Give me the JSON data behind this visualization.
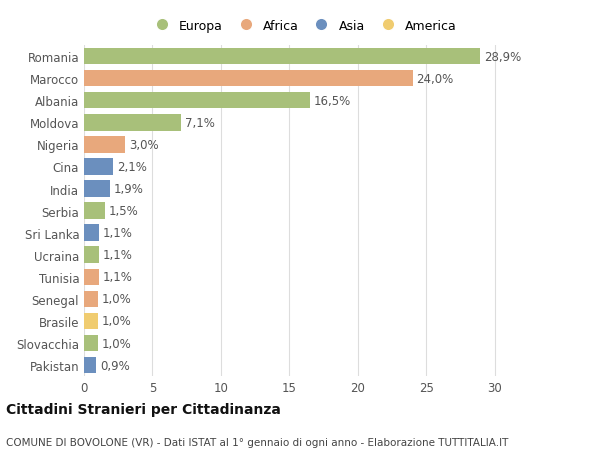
{
  "categories": [
    "Romania",
    "Marocco",
    "Albania",
    "Moldova",
    "Nigeria",
    "Cina",
    "India",
    "Serbia",
    "Sri Lanka",
    "Ucraina",
    "Tunisia",
    "Senegal",
    "Brasile",
    "Slovacchia",
    "Pakistan"
  ],
  "values": [
    28.9,
    24.0,
    16.5,
    7.1,
    3.0,
    2.1,
    1.9,
    1.5,
    1.1,
    1.1,
    1.1,
    1.0,
    1.0,
    1.0,
    0.9
  ],
  "labels": [
    "28,9%",
    "24,0%",
    "16,5%",
    "7,1%",
    "3,0%",
    "2,1%",
    "1,9%",
    "1,5%",
    "1,1%",
    "1,1%",
    "1,1%",
    "1,0%",
    "1,0%",
    "1,0%",
    "0,9%"
  ],
  "continents": [
    "Europa",
    "Africa",
    "Europa",
    "Europa",
    "Africa",
    "Asia",
    "Asia",
    "Europa",
    "Asia",
    "Europa",
    "Africa",
    "Africa",
    "America",
    "Europa",
    "Asia"
  ],
  "colors": {
    "Europa": "#a8c07a",
    "Africa": "#e8a87c",
    "Asia": "#6b8fbe",
    "America": "#f0cc70"
  },
  "legend_order": [
    "Europa",
    "Africa",
    "Asia",
    "America"
  ],
  "xlim": [
    0,
    32
  ],
  "xticks": [
    0,
    5,
    10,
    15,
    20,
    25,
    30
  ],
  "title": "Cittadini Stranieri per Cittadinanza",
  "subtitle": "COMUNE DI BOVOLONE (VR) - Dati ISTAT al 1° gennaio di ogni anno - Elaborazione TUTTITALIA.IT",
  "background_color": "#ffffff",
  "bar_height": 0.75,
  "grid_color": "#dddddd",
  "label_fontsize": 8.5,
  "tick_fontsize": 8.5,
  "title_fontsize": 10,
  "subtitle_fontsize": 7.5,
  "label_color": "#555555",
  "ytick_color": "#555555"
}
